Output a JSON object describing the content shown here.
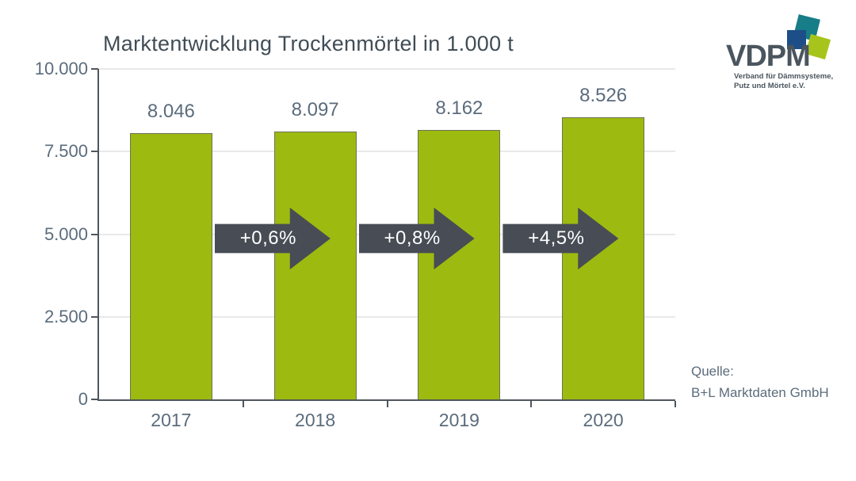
{
  "chart_data": {
    "type": "bar",
    "title": "Marktentwicklung Trockenmörtel in 1.000 t",
    "categories": [
      "2017",
      "2018",
      "2019",
      "2020"
    ],
    "values": [
      8046,
      8097,
      8162,
      8526
    ],
    "value_labels": [
      "8.046",
      "8.097",
      "8.162",
      "8.526"
    ],
    "growth_arrows": [
      "+0,6%",
      "+0,8%",
      "+4,5%"
    ],
    "ylim": [
      0,
      10000
    ],
    "yticks": [
      0,
      2500,
      5000,
      7500,
      10000
    ],
    "ytick_labels": [
      "0",
      "2.500",
      "5.000",
      "7.500",
      "10.000"
    ],
    "xlabel": "",
    "ylabel": "",
    "grid": true,
    "legend": "none",
    "bar_color": "#9dba10",
    "bar_border_color": "#6e7258",
    "arrow_color": "#474c55",
    "arrow_text_color": "#ffffff"
  },
  "logo": {
    "wordmark": "VDPM",
    "subtitle_line1": "Verband für Dämmsysteme,",
    "subtitle_line2": "Putz und Mörtel e.V.",
    "colors": {
      "teal": "#177d88",
      "blue": "#1d4e87",
      "green": "#a7c41c"
    }
  },
  "source": {
    "label": "Quelle:",
    "text": "B+L Marktdaten GmbH"
  }
}
